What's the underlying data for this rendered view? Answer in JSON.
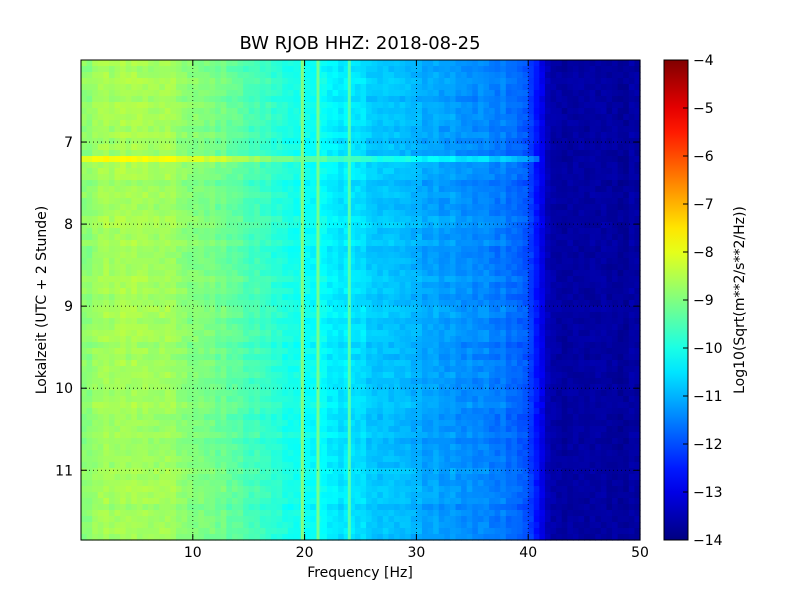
{
  "chart_data": {
    "type": "heatmap",
    "title": "BW RJOB HHZ: 2018-08-25",
    "xlabel": "Frequency [Hz]",
    "ylabel": "Lokalzeit (UTC + 2 Stunde)",
    "colorbar_label": "Log10(Sqrt(m**2/s**2/Hz))",
    "xlim": [
      0,
      50
    ],
    "ylim": [
      6.0,
      11.85
    ],
    "y_inverted": true,
    "x_ticks": [
      10,
      20,
      30,
      40,
      50
    ],
    "y_ticks": [
      7,
      8,
      9,
      10,
      11
    ],
    "colorbar_range": [
      -14,
      -4
    ],
    "colorbar_ticks": [
      -4,
      -5,
      -6,
      -7,
      -8,
      -9,
      -10,
      -11,
      -12,
      -13,
      -14
    ],
    "colormap": "jet",
    "grid": true,
    "frequency_profile": {
      "frequency_hz": [
        0,
        3,
        6,
        9,
        12,
        15,
        18,
        20,
        22,
        25,
        28,
        31,
        34,
        37,
        39,
        40,
        41,
        42,
        45,
        50
      ],
      "log10_amplitude": [
        -8.9,
        -8.6,
        -8.6,
        -8.8,
        -9.1,
        -9.5,
        -9.9,
        -10.1,
        -10.3,
        -10.6,
        -10.9,
        -11.1,
        -11.3,
        -11.5,
        -11.7,
        -12.0,
        -12.8,
        -13.6,
        -13.7,
        -13.7
      ]
    },
    "spectral_lines_hz": [
      19.8,
      21.2,
      24.0
    ],
    "broadband_event_hour": 7.2
  }
}
